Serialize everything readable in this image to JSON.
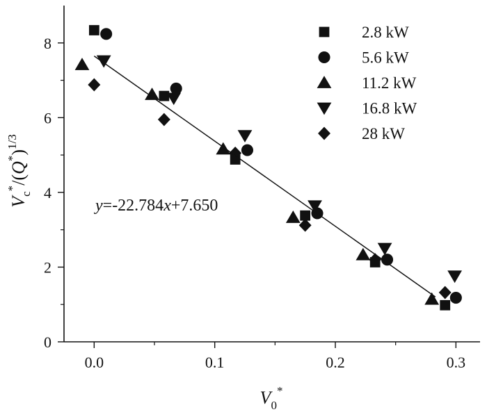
{
  "chart_data": {
    "type": "scatter",
    "xlabel": "V0*",
    "ylabel": "Vc*/(Q*)1/3",
    "xlim": [
      -0.025,
      0.32
    ],
    "ylim": [
      0,
      9
    ],
    "x_ticks": [
      "0.0",
      "0.1",
      "0.2",
      "0.3"
    ],
    "x_tick_values": [
      0.0,
      0.1,
      0.2,
      0.3
    ],
    "y_ticks": [
      "0",
      "2",
      "4",
      "6",
      "8"
    ],
    "y_tick_values": [
      0,
      2,
      4,
      6,
      8
    ],
    "legend_position": "top-right",
    "series": [
      {
        "name": "2.8 kW",
        "marker": "square",
        "points": [
          [
            0.0,
            8.34
          ],
          [
            0.058,
            6.58
          ],
          [
            0.117,
            4.88
          ],
          [
            0.175,
            3.38
          ],
          [
            0.233,
            2.13
          ],
          [
            0.291,
            0.98
          ]
        ]
      },
      {
        "name": "5.6 kW",
        "marker": "circle",
        "points": [
          [
            0.01,
            8.24
          ],
          [
            0.068,
            6.78
          ],
          [
            0.127,
            5.13
          ],
          [
            0.185,
            3.44
          ],
          [
            0.243,
            2.2
          ],
          [
            0.3,
            1.18
          ]
        ]
      },
      {
        "name": "11.2 kW",
        "marker": "triangle-up",
        "points": [
          [
            -0.01,
            7.42
          ],
          [
            0.048,
            6.62
          ],
          [
            0.107,
            5.16
          ],
          [
            0.165,
            3.33
          ],
          [
            0.223,
            2.33
          ],
          [
            0.28,
            1.14
          ]
        ]
      },
      {
        "name": "16.8 kW",
        "marker": "triangle-down",
        "points": [
          [
            0.008,
            7.52
          ],
          [
            0.066,
            6.52
          ],
          [
            0.125,
            5.52
          ],
          [
            0.183,
            3.64
          ],
          [
            0.241,
            2.5
          ],
          [
            0.299,
            1.76
          ]
        ]
      },
      {
        "name": "28 kW",
        "marker": "diamond",
        "points": [
          [
            0.0,
            6.88
          ],
          [
            0.058,
            5.95
          ],
          [
            0.117,
            5.05
          ],
          [
            0.175,
            3.12
          ],
          [
            0.233,
            2.2
          ],
          [
            0.291,
            1.32
          ]
        ]
      }
    ],
    "fit_line": {
      "slope": -22.784,
      "intercept": 7.65,
      "x_range": [
        0.0,
        0.283
      ],
      "equation_label": "y=-22.784x+7.650"
    }
  }
}
